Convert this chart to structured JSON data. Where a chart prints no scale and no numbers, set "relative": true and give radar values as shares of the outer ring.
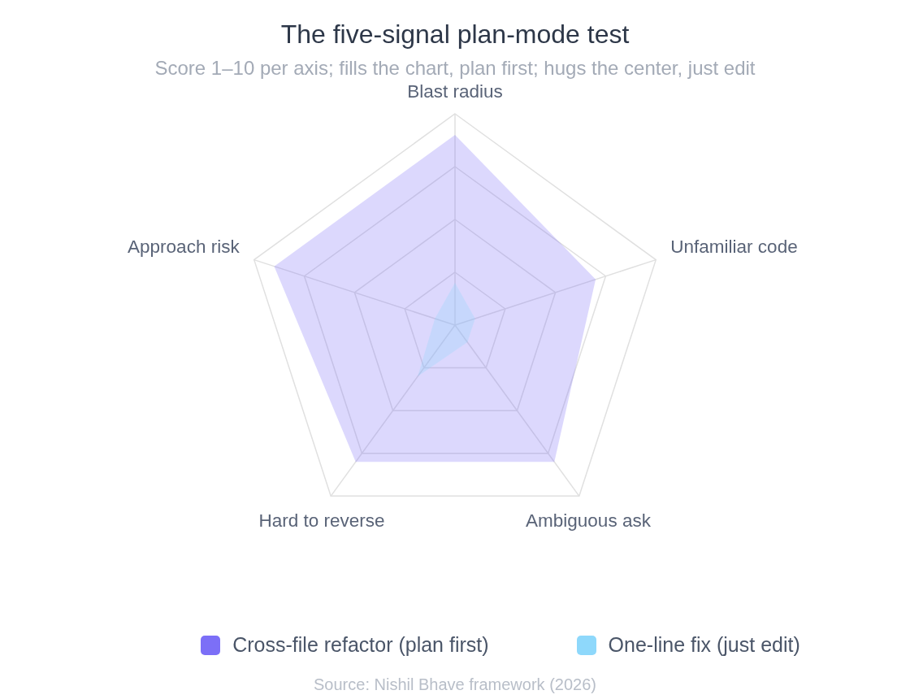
{
  "chart_data": {
    "type": "radar",
    "title": "The five-signal plan-mode test",
    "subtitle": "Score 1–10 per axis; fills the chart, plan first; hugs the center, just edit",
    "categories": [
      "Blast radius",
      "Unfamiliar code",
      "Ambiguous ask",
      "Hard to reverse",
      "Approach risk"
    ],
    "series": [
      {
        "name": "Cross-file refactor (plan first)",
        "color": "#7c6ff7",
        "values": [
          0.9,
          0.7,
          0.8,
          0.8,
          0.9
        ]
      },
      {
        "name": "One-line fix (just edit)",
        "color": "#8ed8fb",
        "values": [
          0.2,
          0.1,
          0.1,
          0.3,
          0.1
        ]
      }
    ],
    "relative": true,
    "grid": true,
    "legend": "bottom",
    "annotations": [
      "Source: Nishil Bhave framework (2026)"
    ]
  }
}
